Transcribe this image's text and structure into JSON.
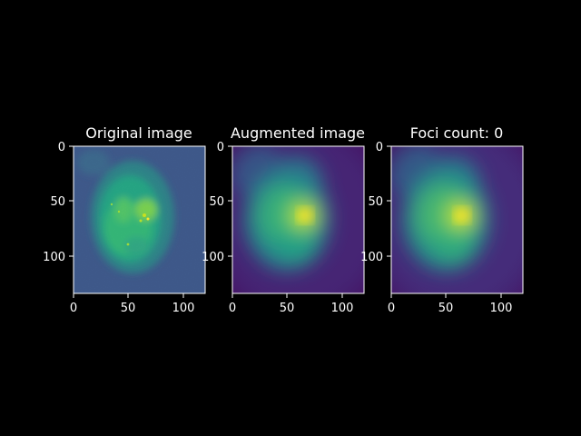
{
  "panels": [
    {
      "title": "Original image",
      "style": "noisy",
      "x_ticks": [
        "0",
        "50",
        "100"
      ],
      "y_ticks": [
        "0",
        "50",
        "100"
      ]
    },
    {
      "title": "Augmented image",
      "style": "smooth",
      "x_ticks": [
        "0",
        "50",
        "100"
      ],
      "y_ticks": [
        "0",
        "50",
        "100"
      ]
    },
    {
      "title": "Foci count: 0",
      "style": "smooth",
      "x_ticks": [
        "0",
        "50",
        "100"
      ],
      "y_ticks": [
        "0",
        "50",
        "100"
      ]
    }
  ],
  "image_extent": {
    "x": [
      0,
      120
    ],
    "y": [
      0,
      135
    ]
  },
  "colormap": "viridis",
  "colors": {
    "background": "#000000",
    "text": "#ffffff",
    "axes": "#ffffff"
  }
}
